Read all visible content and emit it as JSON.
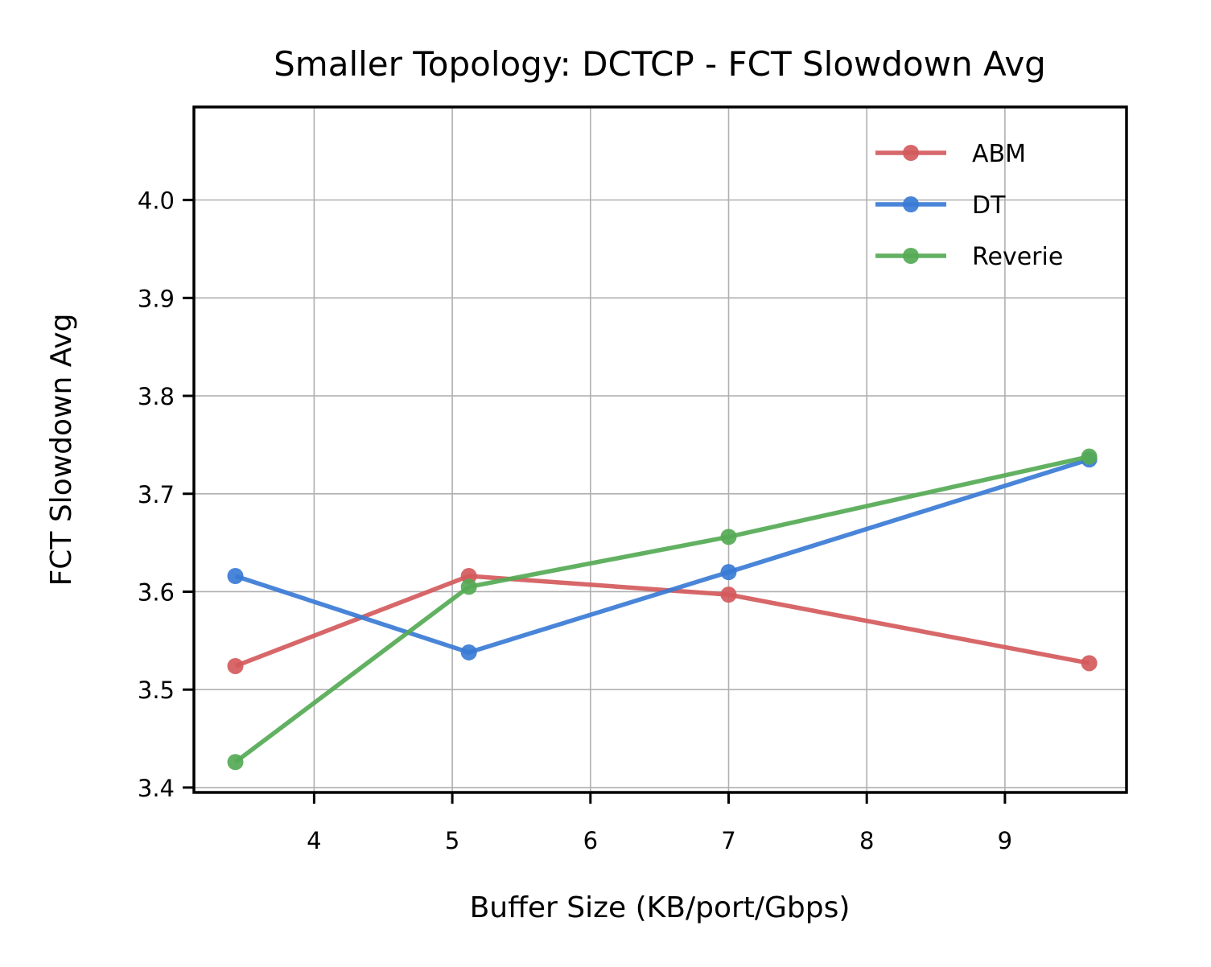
{
  "chart_data": {
    "type": "line",
    "title": "Smaller Topology: DCTCP - FCT Slowdown Avg",
    "xlabel": "Buffer Size (KB/port/Gbps)",
    "ylabel": "FCT Slowdown Avg",
    "xlim": [
      3.13,
      9.88
    ],
    "ylim": [
      3.395,
      4.095
    ],
    "xticks": [
      4,
      5,
      6,
      7,
      8,
      9
    ],
    "yticks": [
      3.4,
      3.5,
      3.6,
      3.7,
      3.8,
      3.9,
      4.0
    ],
    "xtick_labels": [
      "4",
      "5",
      "6",
      "7",
      "8",
      "9"
    ],
    "ytick_labels": [
      "3.4",
      "3.5",
      "3.6",
      "3.7",
      "3.8",
      "3.9",
      "4.0"
    ],
    "grid": true,
    "legend_position": "top-right",
    "series": [
      {
        "name": "ABM",
        "color": "#d45a5c",
        "x": [
          3.43,
          5.12,
          7.0,
          9.61
        ],
        "y": [
          3.524,
          3.616,
          3.597,
          3.527
        ]
      },
      {
        "name": "DT",
        "color": "#3a7bd5",
        "x": [
          3.43,
          5.12,
          7.0,
          9.61
        ],
        "y": [
          3.616,
          3.538,
          3.62,
          3.735
        ]
      },
      {
        "name": "Reverie",
        "color": "#55aa55",
        "x": [
          3.43,
          5.12,
          7.0,
          9.61
        ],
        "y": [
          3.426,
          3.605,
          3.656,
          3.738
        ]
      }
    ]
  }
}
